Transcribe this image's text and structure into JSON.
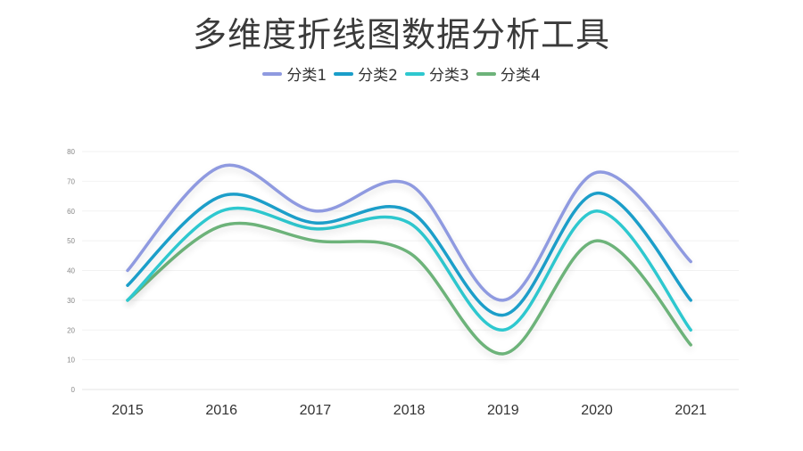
{
  "title": "多维度折线图数据分析工具",
  "legend": [
    {
      "label": "分类1",
      "color": "#8f9ae0"
    },
    {
      "label": "分类2",
      "color": "#1a9ec9"
    },
    {
      "label": "分类3",
      "color": "#2ec8cf"
    },
    {
      "label": "分类4",
      "color": "#6db37a"
    }
  ],
  "chart_data": {
    "type": "line",
    "title": "多维度折线图数据分析工具",
    "xlabel": "",
    "ylabel": "",
    "categories": [
      "2015",
      "2016",
      "2017",
      "2018",
      "2019",
      "2020",
      "2021"
    ],
    "series": [
      {
        "name": "分类1",
        "color": "#8f9ae0",
        "values": [
          40,
          75,
          60,
          69,
          30,
          73,
          43
        ]
      },
      {
        "name": "分类2",
        "color": "#1a9ec9",
        "values": [
          35,
          65,
          56,
          60,
          25,
          66,
          30
        ]
      },
      {
        "name": "分类3",
        "color": "#2ec8cf",
        "values": [
          30,
          60,
          54,
          56,
          20,
          60,
          20
        ]
      },
      {
        "name": "分类4",
        "color": "#6db37a",
        "values": [
          30,
          55,
          50,
          46,
          12,
          50,
          15
        ]
      }
    ],
    "yticks": [
      0,
      10,
      20,
      30,
      40,
      50,
      60,
      70,
      80
    ],
    "ylim": [
      0,
      80
    ],
    "grid": true,
    "smooth": true,
    "legend_position": "top"
  }
}
